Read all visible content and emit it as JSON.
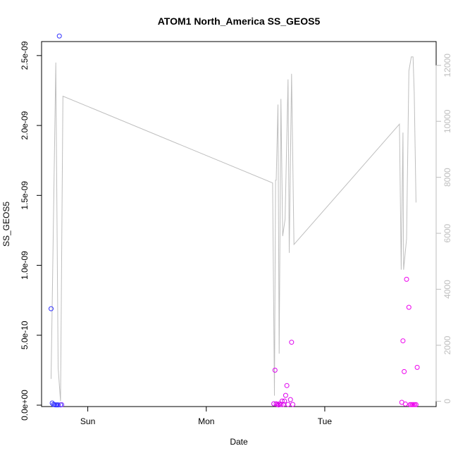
{
  "chart_data": {
    "type": "scatter",
    "title": "ATOM1 North_America SS_GEOS5",
    "xlabel": "Date",
    "ylabel": "SS_GEOS5",
    "x_ticks": [
      "Sun",
      "Mon",
      "Tue"
    ],
    "x_tick_positions_days": [
      1,
      2,
      3
    ],
    "xlim_days": [
      0.61,
      3.94
    ],
    "ylim": [
      -1e-11,
      2.6e-09
    ],
    "y_ticks": [
      "0.0e+00",
      "5.0e-10",
      "1.0e-09",
      "1.5e-09",
      "2.0e-09",
      "2.5e-09"
    ],
    "y_tick_values": [
      0,
      5e-10,
      1e-09,
      1.5e-09,
      2e-09,
      2.5e-09
    ],
    "y2_ticks": [
      "0",
      "2000",
      "4000",
      "6000",
      "8000",
      "10000",
      "12000"
    ],
    "y2_tick_values": [
      0,
      2000,
      4000,
      6000,
      8000,
      10000,
      12000
    ],
    "y2lim": [
      -190,
      12850
    ],
    "colors": {
      "axis": "#000000",
      "line": "#bebebe",
      "blue": "#3333ff",
      "purple": "#8833ff",
      "magenta": "#ee00ee"
    },
    "points": [
      {
        "x": 0.69,
        "y": 6.9e-10,
        "color": "#3333ff"
      },
      {
        "x": 0.7,
        "y": 1.5e-11,
        "color": "#3333ff"
      },
      {
        "x": 0.71,
        "y": 5e-12,
        "color": "#3333ff"
      },
      {
        "x": 0.72,
        "y": 3e-12,
        "color": "#3333ff"
      },
      {
        "x": 0.73,
        "y": 2e-12,
        "color": "#3333ff"
      },
      {
        "x": 0.74,
        "y": 2e-12,
        "color": "#3333ff"
      },
      {
        "x": 0.75,
        "y": 2e-12,
        "color": "#3333ff"
      },
      {
        "x": 0.76,
        "y": 2.64e-09,
        "color": "#3333ff"
      },
      {
        "x": 0.77,
        "y": 2e-12,
        "color": "#3333ff"
      },
      {
        "x": 0.78,
        "y": 3e-12,
        "color": "#8833ff"
      },
      {
        "x": 2.57,
        "y": 1e-11,
        "color": "#cc00ee"
      },
      {
        "x": 2.58,
        "y": 2.5e-10,
        "color": "#dd00ee"
      },
      {
        "x": 2.59,
        "y": 1e-11,
        "color": "#dd00ee"
      },
      {
        "x": 2.6,
        "y": 5e-12,
        "color": "#dd00ee"
      },
      {
        "x": 2.61,
        "y": 2e-12,
        "color": "#dd00ee"
      },
      {
        "x": 2.62,
        "y": 1e-11,
        "color": "#dd00ee"
      },
      {
        "x": 2.63,
        "y": 4e-12,
        "color": "#dd00ee"
      },
      {
        "x": 2.64,
        "y": 3e-11,
        "color": "#dd00ee"
      },
      {
        "x": 2.65,
        "y": 5e-12,
        "color": "#dd00ee"
      },
      {
        "x": 2.66,
        "y": 3e-11,
        "color": "#dd00ee"
      },
      {
        "x": 2.67,
        "y": 7e-11,
        "color": "#dd00ee"
      },
      {
        "x": 2.68,
        "y": 1.4e-10,
        "color": "#dd00ee"
      },
      {
        "x": 2.69,
        "y": 5e-12,
        "color": "#dd00ee"
      },
      {
        "x": 2.71,
        "y": 4e-11,
        "color": "#dd00ee"
      },
      {
        "x": 2.72,
        "y": 4.5e-10,
        "color": "#dd00ee"
      },
      {
        "x": 2.73,
        "y": 5e-12,
        "color": "#dd00ee"
      },
      {
        "x": 3.65,
        "y": 2e-11,
        "color": "#ee00ee"
      },
      {
        "x": 3.66,
        "y": 4.6e-10,
        "color": "#ee00ee"
      },
      {
        "x": 3.67,
        "y": 2.4e-10,
        "color": "#ee00ee"
      },
      {
        "x": 3.68,
        "y": 8e-12,
        "color": "#ee00ee"
      },
      {
        "x": 3.69,
        "y": 9e-10,
        "color": "#ee00ee"
      },
      {
        "x": 3.71,
        "y": 7e-10,
        "color": "#ee00ee"
      },
      {
        "x": 3.72,
        "y": 4e-12,
        "color": "#ee00ee"
      },
      {
        "x": 3.73,
        "y": 4e-12,
        "color": "#ee00ee"
      },
      {
        "x": 3.74,
        "y": 4e-12,
        "color": "#ee00ee"
      },
      {
        "x": 3.75,
        "y": 4e-12,
        "color": "#ee00ee"
      },
      {
        "x": 3.76,
        "y": 4e-12,
        "color": "#ee00ee"
      },
      {
        "x": 3.77,
        "y": 4e-12,
        "color": "#ee00ee"
      },
      {
        "x": 3.78,
        "y": 2.7e-10,
        "color": "#ee00ee"
      }
    ],
    "line_series": [
      {
        "x": 0.69,
        "y2": 800
      },
      {
        "x": 0.73,
        "y2": 12100
      },
      {
        "x": 0.75,
        "y2": 1200
      },
      {
        "x": 0.77,
        "y2": 0
      },
      {
        "x": 0.79,
        "y2": 10900
      },
      {
        "x": 2.56,
        "y2": 7800
      },
      {
        "x": 2.575,
        "y2": 200
      },
      {
        "x": 2.585,
        "y2": 7900
      },
      {
        "x": 2.59,
        "y2": 7900
      },
      {
        "x": 2.605,
        "y2": 10600
      },
      {
        "x": 2.615,
        "y2": 1700
      },
      {
        "x": 2.63,
        "y2": 10800
      },
      {
        "x": 2.645,
        "y2": 5900
      },
      {
        "x": 2.665,
        "y2": 6500
      },
      {
        "x": 2.69,
        "y2": 11500
      },
      {
        "x": 2.7,
        "y2": 5300
      },
      {
        "x": 2.72,
        "y2": 11700
      },
      {
        "x": 2.74,
        "y2": 5600
      },
      {
        "x": 3.63,
        "y2": 9900
      },
      {
        "x": 3.645,
        "y2": 4700
      },
      {
        "x": 3.66,
        "y2": 9600
      },
      {
        "x": 3.665,
        "y2": 4700
      },
      {
        "x": 3.69,
        "y2": 5800
      },
      {
        "x": 3.71,
        "y2": 11800
      },
      {
        "x": 3.73,
        "y2": 12300
      },
      {
        "x": 3.745,
        "y2": 12300
      },
      {
        "x": 3.755,
        "y2": 11000
      },
      {
        "x": 3.77,
        "y2": 7100
      }
    ]
  }
}
